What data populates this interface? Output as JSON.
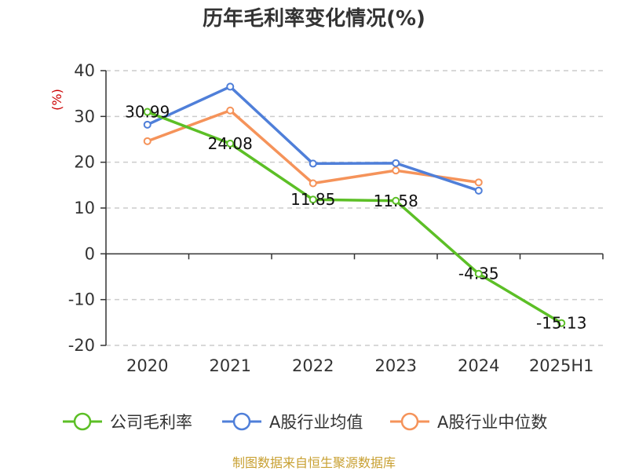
{
  "chart_data": {
    "type": "line",
    "title": "历年毛利率变化情况(%)",
    "ylabel": "(%)",
    "xlabel": "",
    "categories": [
      "2020",
      "2021",
      "2022",
      "2023",
      "2024",
      "2025H1"
    ],
    "ylim": [
      -20,
      40
    ],
    "yticks": [
      -20,
      -10,
      0,
      10,
      20,
      30,
      40
    ],
    "grid": true,
    "legend_position": "bottom",
    "series": [
      {
        "name": "公司毛利率",
        "color": "#5cbf26",
        "values": [
          30.99,
          24.08,
          11.85,
          11.58,
          -4.35,
          -15.13
        ],
        "labels": [
          "30.99",
          "24.08",
          "11.85",
          "11.58",
          "-4.35",
          "-15.13"
        ]
      },
      {
        "name": "A股行业均值",
        "color": "#4f7fd9",
        "values": [
          28.2,
          36.5,
          19.7,
          19.8,
          13.8,
          null
        ]
      },
      {
        "name": "A股行业中位数",
        "color": "#f5935a",
        "values": [
          24.6,
          31.3,
          15.4,
          18.2,
          15.6,
          null
        ]
      }
    ]
  },
  "source": "制图数据来自恒生聚源数据库"
}
